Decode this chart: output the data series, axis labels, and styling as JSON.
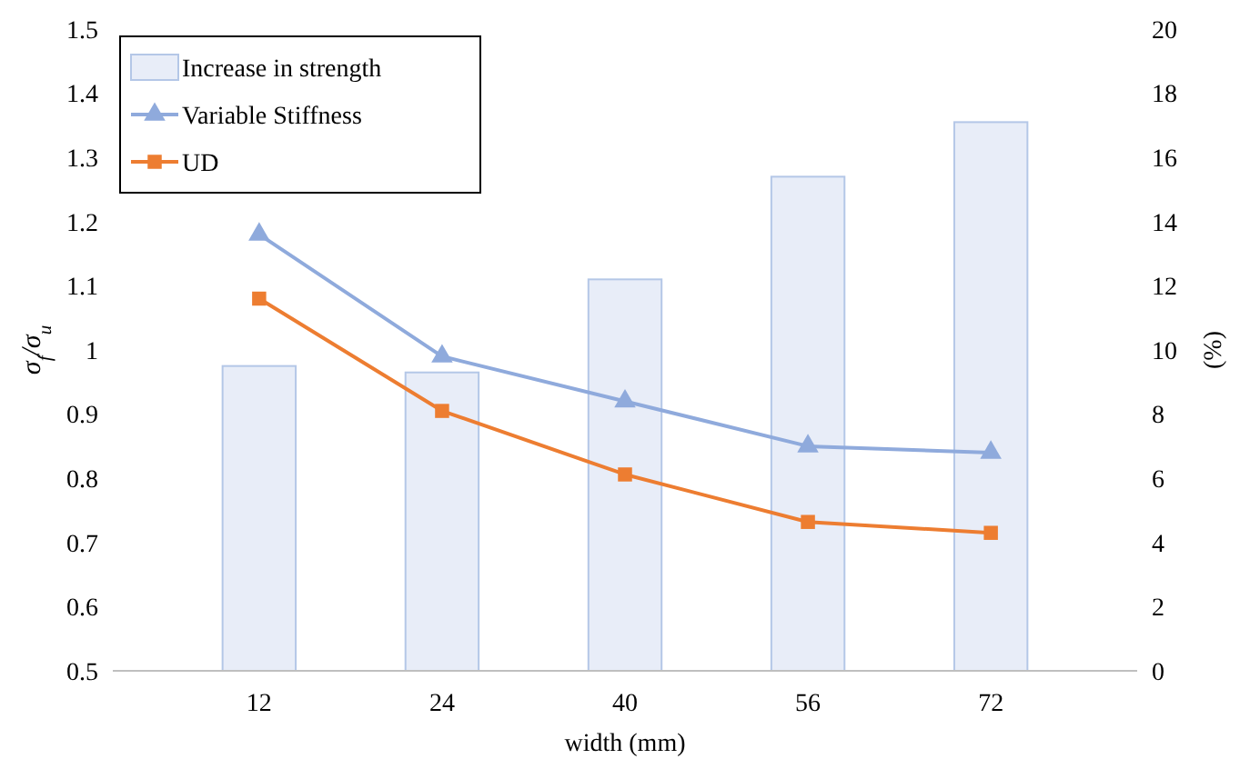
{
  "chart_data": {
    "type": "line",
    "xlabel": "width (mm)",
    "ylabel": "σ$_{f}$/σ$_{u}$",
    "y2label": "(%)",
    "categories": [
      "12",
      "24",
      "40",
      "56",
      "72"
    ],
    "series": [
      {
        "name": "Increase in strength",
        "type": "bar",
        "axis": "y2",
        "color": "#e8edf8",
        "values": [
          9.5,
          9.3,
          12.2,
          15.4,
          17.1
        ]
      },
      {
        "name": "Variable Stiffness",
        "marker": "triangle",
        "color": "#8faadc",
        "values": [
          1.18,
          0.99,
          0.92,
          0.85,
          0.84
        ]
      },
      {
        "name": "UD",
        "marker": "square",
        "color": "#ed7d31",
        "values": [
          1.08,
          0.905,
          0.806,
          0.732,
          0.715
        ]
      }
    ],
    "ylim": [
      0.5,
      1.5
    ],
    "yticks": [
      0.5,
      0.6,
      0.7,
      0.8,
      0.9,
      1,
      1.1,
      1.2,
      1.3,
      1.4,
      1.5
    ],
    "y2lim": [
      0,
      20
    ],
    "y2ticks": [
      0,
      2,
      4,
      6,
      8,
      10,
      12,
      14,
      16,
      18,
      20
    ],
    "grid": false,
    "legend": "top left"
  }
}
